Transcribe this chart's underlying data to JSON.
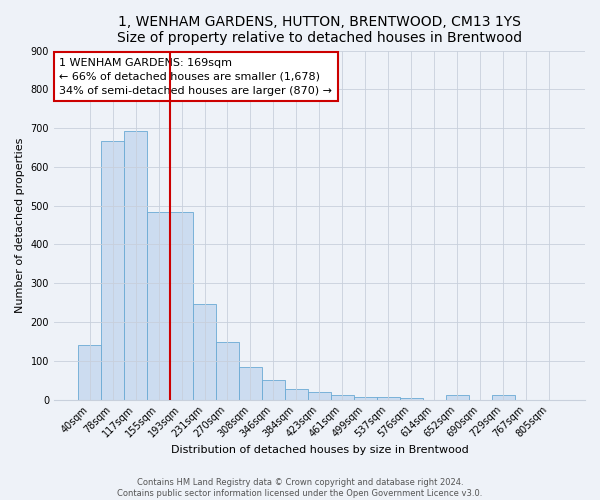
{
  "title": "1, WENHAM GARDENS, HUTTON, BRENTWOOD, CM13 1YS",
  "subtitle": "Size of property relative to detached houses in Brentwood",
  "xlabel": "Distribution of detached houses by size in Brentwood",
  "ylabel": "Number of detached properties",
  "categories": [
    "40sqm",
    "78sqm",
    "117sqm",
    "155sqm",
    "193sqm",
    "231sqm",
    "270sqm",
    "308sqm",
    "346sqm",
    "384sqm",
    "423sqm",
    "461sqm",
    "499sqm",
    "537sqm",
    "576sqm",
    "614sqm",
    "652sqm",
    "690sqm",
    "729sqm",
    "767sqm",
    "805sqm"
  ],
  "values": [
    140,
    667,
    693,
    483,
    483,
    247,
    148,
    83,
    50,
    27,
    21,
    11,
    7,
    7,
    5,
    0,
    12,
    0,
    12,
    0,
    0
  ],
  "bar_color": "#ccdcf0",
  "bar_edge_color": "#6aaad4",
  "bar_width": 1.0,
  "vline_x": 3.5,
  "vline_color": "#cc0000",
  "annotation_text": "1 WENHAM GARDENS: 169sqm\n← 66% of detached houses are smaller (1,678)\n34% of semi-detached houses are larger (870) →",
  "annotation_box_color": "#ffffff",
  "annotation_box_edge": "#cc0000",
  "ylim": [
    0,
    900
  ],
  "yticks": [
    0,
    100,
    200,
    300,
    400,
    500,
    600,
    700,
    800,
    900
  ],
  "footer_line1": "Contains HM Land Registry data © Crown copyright and database right 2024.",
  "footer_line2": "Contains public sector information licensed under the Open Government Licence v3.0.",
  "bg_color": "#eef2f8",
  "plot_bg_color": "#eef2f8",
  "title_fontsize": 10,
  "axis_label_fontsize": 8,
  "tick_fontsize": 7,
  "annotation_fontsize": 8,
  "footer_fontsize": 6
}
